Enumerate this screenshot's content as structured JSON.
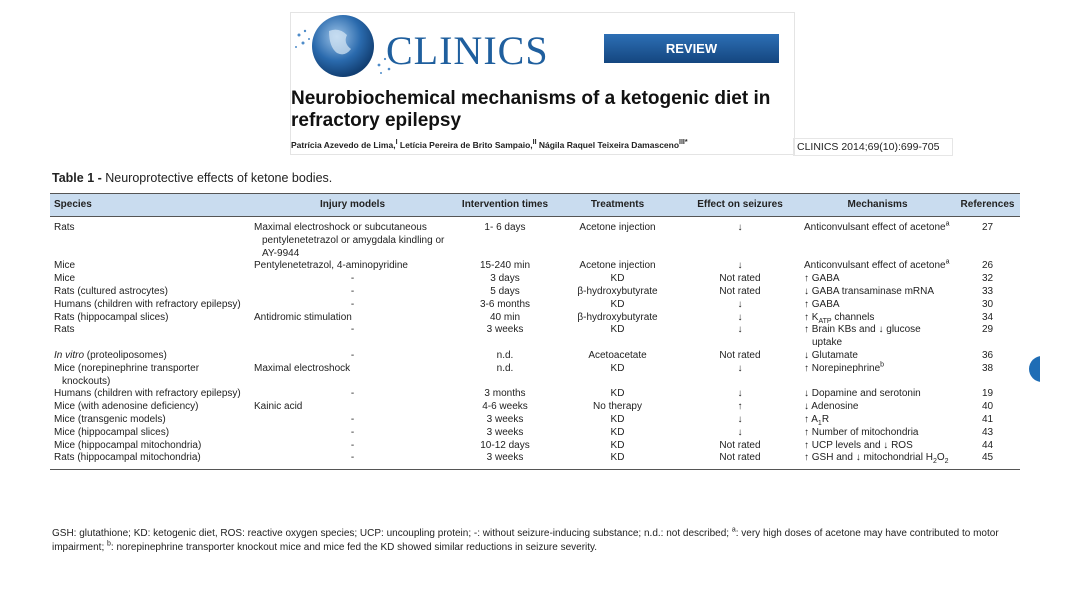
{
  "header": {
    "logo": "CLINICS",
    "badge": "REVIEW",
    "title": [
      "Neurobiochemical mechanisms of a ketogenic diet in",
      "refractory epilepsy"
    ],
    "authors": [
      {
        "text": "Patrícia Azevedo de Lima,"
      },
      {
        "text": "I",
        "style": "sup"
      },
      {
        "text": " Letícia Pereira de Brito Sampaio,"
      },
      {
        "text": "II",
        "style": "sup"
      },
      {
        "text": " Nágila Raquel Teixeira Damasceno"
      },
      {
        "text": "III*",
        "style": "sup"
      }
    ],
    "citation": "CLINICS 2014;69(10):699-705"
  },
  "table": {
    "caption_label": "Table 1 -",
    "caption": " Neuroprotective effects of ketone bodies.",
    "columns": [
      "Species",
      "Injury models",
      "Intervention times",
      "Treatments",
      "Effect on seizures",
      "Mechanisms",
      "References"
    ],
    "rows": [
      [
        "Rats",
        "Maximal electroshock or subcutaneous pentylenetetrazol or amygdala kindling or AY-9944",
        "1- 6 days",
        "Acetone injection",
        "↓",
        [
          {
            "text": "Anticonvulsant effect of acetone"
          },
          {
            "text": "a",
            "style": "sup"
          }
        ],
        27
      ],
      [
        "Mice",
        "Pentylenetetrazol, 4-aminopyridine",
        "15-240 min",
        "Acetone injection",
        "↓",
        [
          {
            "text": "Anticonvulsant effect of acetone"
          },
          {
            "text": "a",
            "style": "sup"
          }
        ],
        26
      ],
      [
        "Mice",
        "-",
        "3 days",
        "KD",
        "Not rated",
        "↑ GABA",
        32
      ],
      [
        "Rats (cultured astrocytes)",
        "-",
        "5 days",
        "β-hydroxybutyrate",
        "Not rated",
        "↓ GABA transaminase mRNA",
        33
      ],
      [
        "Humans (children with refractory epilepsy)",
        "-",
        "3-6 months",
        "KD",
        "↓",
        "↑ GABA",
        30
      ],
      [
        "Rats (hippocampal slices)",
        "Antidromic stimulation",
        "40 min",
        "β-hydroxybutyrate",
        "↓",
        [
          {
            "text": "↑ K"
          },
          {
            "text": "ATP",
            "style": "sub"
          },
          {
            "text": " channels"
          }
        ],
        34
      ],
      [
        "Rats",
        "-",
        "3 weeks",
        "KD",
        "↓",
        "↑ Brain KBs and ↓ glucose uptake",
        29
      ],
      [
        [
          {
            "text": "In vitro",
            "style": "italic"
          },
          {
            "text": " (proteoliposomes)"
          }
        ],
        "-",
        "n.d.",
        "Acetoacetate",
        "Not rated",
        "↓ Glutamate",
        36
      ],
      [
        "Mice (norepinephrine transporter knockouts)",
        "Maximal electroshock",
        "n.d.",
        "KD",
        "↓",
        [
          {
            "text": "↑ Norepinephrine"
          },
          {
            "text": "b",
            "style": "sup"
          }
        ],
        38
      ],
      [
        "Humans (children with refractory epilepsy)",
        "-",
        "3 months",
        "KD",
        "↓",
        "↓ Dopamine and serotonin",
        19
      ],
      [
        "Mice (with adenosine deficiency)",
        "Kainic acid",
        "4-6 weeks",
        "No therapy",
        "↑",
        "↓ Adenosine",
        40
      ],
      [
        "Mice (transgenic models)",
        "-",
        "3 weeks",
        "KD",
        "↓",
        [
          {
            "text": "↑ A"
          },
          {
            "text": "1",
            "style": "sub"
          },
          {
            "text": "R"
          }
        ],
        41
      ],
      [
        "Mice (hippocampal slices)",
        "-",
        "3 weeks",
        "KD",
        "↓",
        "↑ Number of mitochondria",
        43
      ],
      [
        "Mice (hippocampal mitochondria)",
        "-",
        "10-12 days",
        "KD",
        "Not rated",
        "↑ UCP levels and ↓ ROS",
        44
      ],
      [
        "Rats (hippocampal mitochondria)",
        "-",
        "3 weeks",
        "KD",
        "Not rated",
        [
          {
            "text": "↑ GSH and ↓ mitochondrial H"
          },
          {
            "text": "2",
            "style": "sub"
          },
          {
            "text": "O"
          },
          {
            "text": "2",
            "style": "sub"
          }
        ],
        45
      ]
    ],
    "footnote": [
      {
        "text": "GSH: glutathione; KD: ketogenic diet, ROS: reactive oxygen species; UCP: uncoupling protein; -: without seizure-inducing substance; n.d.: not described; "
      },
      {
        "text": "a",
        "style": "sup"
      },
      {
        "text": ": very high doses of acetone may have contributed to motor impairment; "
      },
      {
        "text": "b",
        "style": "sup"
      },
      {
        "text": ": norepinephrine transporter knockout mice and mice fed the KD showed similar reductions in seizure severity."
      }
    ]
  }
}
